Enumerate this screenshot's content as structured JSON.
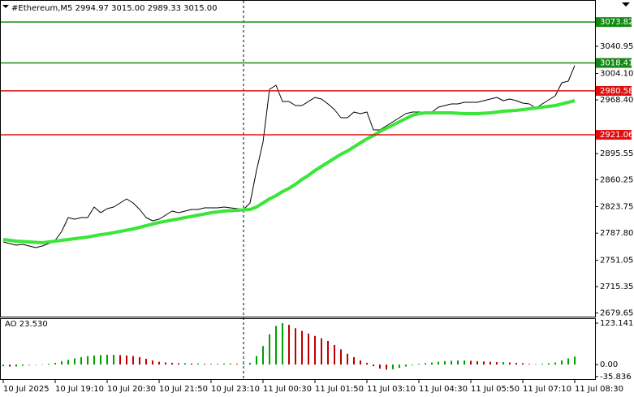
{
  "chart_data": [
    {
      "type": "line",
      "title": "#Ethereum,M5  2994.97 3015.00 2989.33 3015.00",
      "series": [
        {
          "color": "#000000",
          "values": [
            2775.9,
            2773.7,
            2771.5,
            2772.6,
            2770.4,
            2768.2,
            2770.4,
            2773.7,
            2778.1,
            2790.2,
            2808.9,
            2806.7,
            2808.9,
            2808.9,
            2823.2,
            2815.5,
            2821.0,
            2823.2,
            2828.7,
            2834.2,
            2828.7,
            2819.9,
            2808.9,
            2804.5,
            2806.7,
            2812.2,
            2817.7,
            2815.5,
            2817.7,
            2819.9,
            2819.9,
            2822.1,
            2822.1,
            2822.1,
            2823.2,
            2822.1,
            2821.0,
            2819.9,
            2828.7,
            2872.7,
            2911.2,
            2982.7,
            2988.2,
            2966.2,
            2966.2,
            2960.7,
            2960.7,
            2966.2,
            2971.7,
            2969.5,
            2962.9,
            2955.2,
            2944.2,
            2944.2,
            2951.9,
            2949.7,
            2951.9,
            2927.7,
            2927.7,
            2933.2,
            2938.7,
            2944.2,
            2949.7,
            2951.9,
            2951.9,
            2951.9,
            2951.9,
            2958.5,
            2960.7,
            2962.9,
            2962.9,
            2965.1,
            2965.1,
            2965.1,
            2967.3,
            2969.5,
            2971.7,
            2967.3,
            2969.5,
            2967.3,
            2964.0,
            2962.9,
            2957.4,
            2962.9,
            2968.4,
            2973.9,
            2991.5,
            2993.7,
            3015.0
          ]
        },
        {
          "color": "#39e639",
          "values": [
            2779.2,
            2778.1,
            2777.0,
            2776.5,
            2775.9,
            2775.4,
            2774.8,
            2775.9,
            2777.0,
            2778.1,
            2779.2,
            2780.3,
            2781.4,
            2782.5,
            2784.2,
            2785.8,
            2786.9,
            2788.5,
            2790.2,
            2791.8,
            2793.5,
            2795.7,
            2797.9,
            2800.1,
            2802.3,
            2803.9,
            2805.6,
            2807.2,
            2808.9,
            2810.5,
            2812.2,
            2813.8,
            2815.5,
            2816.6,
            2817.7,
            2818.2,
            2818.8,
            2819.3,
            2819.9,
            2823.2,
            2828.7,
            2834.2,
            2838.6,
            2844.1,
            2848.5,
            2854.0,
            2860.6,
            2866.1,
            2872.7,
            2878.2,
            2883.7,
            2889.2,
            2894.7,
            2899.1,
            2904.6,
            2910.1,
            2915.6,
            2920.0,
            2925.5,
            2929.9,
            2934.3,
            2938.7,
            2943.1,
            2947.5,
            2949.7,
            2950.8,
            2950.8,
            2950.8,
            2950.8,
            2950.8,
            2950.3,
            2949.7,
            2949.7,
            2949.7,
            2950.3,
            2950.8,
            2951.9,
            2953.0,
            2953.5,
            2954.1,
            2955.2,
            2956.3,
            2957.4,
            2958.5,
            2959.6,
            2960.7,
            2962.9,
            2965.1,
            2967.3
          ]
        }
      ],
      "ylim": [
        2674.7,
        3103.7
      ],
      "yticks": [
        3040.95,
        {
          "value": 3004.1,
          "label": "3004.10"
        },
        {
          "value": 2968.4,
          "label": "2968.40"
        },
        2895.55,
        2860.25,
        2823.75,
        {
          "value": 2787.8,
          "label": "2787.80"
        },
        2751.05,
        2715.35,
        2679.65
      ],
      "levels": [
        {
          "value": 3073.82,
          "color": "#138a13"
        },
        {
          "value": 3018.41,
          "color": "#138a13"
        },
        {
          "value": 2980.58,
          "color": "#e01010"
        },
        {
          "value": 2921.06,
          "color": "#e01010"
        }
      ]
    },
    {
      "type": "bar",
      "title": "AO 23.530",
      "categories": [
        "10 Jul 2025",
        null,
        null,
        null,
        null,
        null,
        null,
        null,
        "10 Jul 19:10",
        null,
        null,
        null,
        null,
        null,
        null,
        null,
        "10 Jul 20:30",
        null,
        null,
        null,
        null,
        null,
        null,
        null,
        "10 Jul 21:50",
        null,
        null,
        null,
        null,
        null,
        null,
        null,
        "10 Jul 23:10",
        null,
        null,
        null,
        null,
        null,
        null,
        null,
        "11 Jul 00:30",
        null,
        null,
        null,
        null,
        null,
        null,
        null,
        "11 Jul 01:50",
        null,
        null,
        null,
        null,
        null,
        null,
        null,
        "11 Jul 03:10",
        null,
        null,
        null,
        null,
        null,
        null,
        null,
        "11 Jul 04:30",
        null,
        null,
        null,
        null,
        null,
        null,
        null,
        "11 Jul 05:50",
        null,
        null,
        null,
        null,
        null,
        null,
        null,
        "11 Jul 07:10",
        null,
        null,
        null,
        null,
        null,
        null,
        null,
        "11 Jul 08:30"
      ],
      "values": [
        -5,
        -6,
        -6,
        -4,
        -2,
        -1,
        0.5,
        2,
        5,
        10,
        14,
        18,
        22,
        25,
        27,
        28,
        29,
        29,
        28,
        27,
        25,
        22,
        17,
        12,
        8,
        6,
        5,
        4,
        4,
        3,
        3,
        2,
        2,
        2,
        3,
        3,
        2,
        2,
        5,
        25,
        55,
        90,
        115,
        123,
        118,
        108,
        100,
        92,
        85,
        78,
        70,
        58,
        45,
        32,
        22,
        12,
        5,
        -5,
        -12,
        -15,
        -14,
        -10,
        -6,
        -2,
        2,
        4,
        6,
        8,
        10,
        11,
        12,
        12,
        11,
        10,
        9,
        8,
        7,
        7,
        6,
        5,
        4,
        2,
        1,
        2,
        4,
        6,
        12,
        18,
        23.53
      ],
      "up_color": "#00a000",
      "down_color": "#c00000",
      "ylim": [
        -45.9,
        137.6
      ],
      "yticks": [
        123.141,
        {
          "value": 0,
          "label": "0.00"
        },
        -35.836
      ]
    }
  ]
}
